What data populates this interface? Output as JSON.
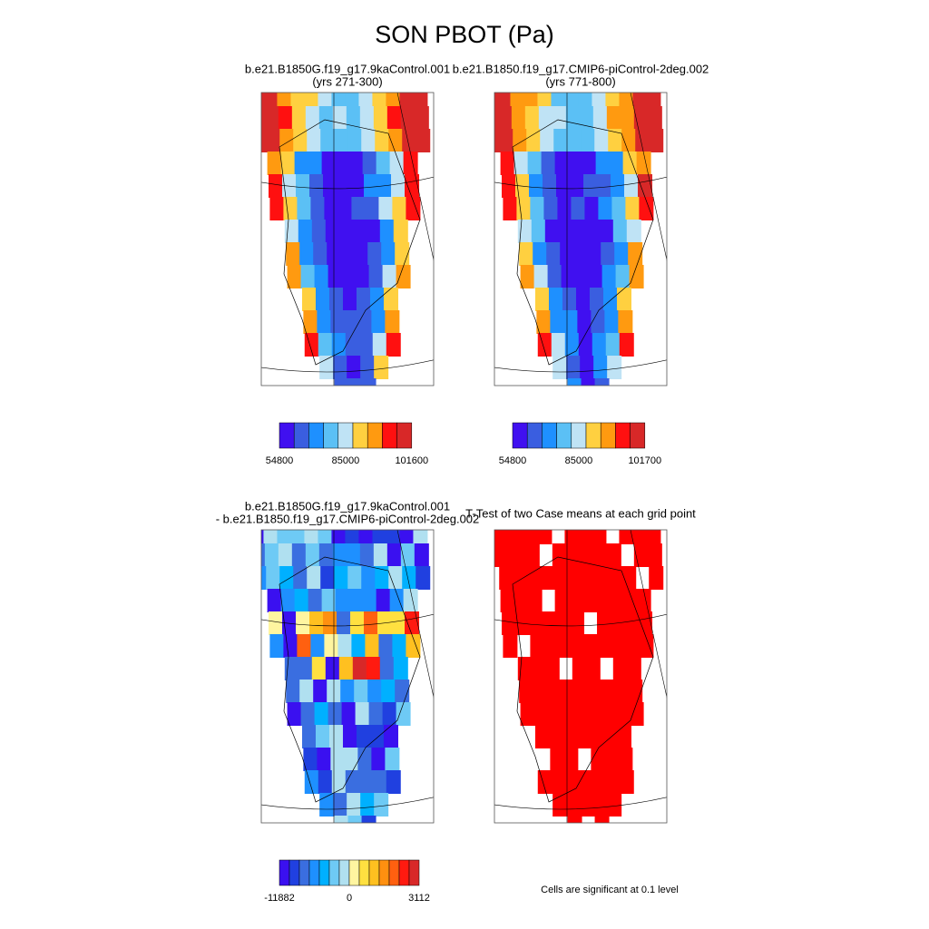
{
  "title": "SON PBOT (Pa)",
  "panels": [
    {
      "title": [
        "b.e21.B1850G.f19_g17.9kaControl.001",
        "(yrs 271-300)"
      ],
      "colorbar": {
        "colors": [
          "#4010f0",
          "#3a5ee0",
          "#1e90ff",
          "#5bc0f5",
          "#bfe3f5",
          "#ffd040",
          "#ff9a10",
          "#ff1010",
          "#d82828"
        ],
        "ticks": [
          54800,
          85000,
          101600
        ]
      }
    },
    {
      "title": [
        "b.e21.B1850.f19_g17.CMIP6-piControl-2deg.002",
        "(yrs 771-800)"
      ],
      "colorbar": {
        "colors": [
          "#4010f0",
          "#3a5ee0",
          "#1e90ff",
          "#5bc0f5",
          "#bfe3f5",
          "#ffd040",
          "#ff9a10",
          "#ff1010",
          "#d82828"
        ],
        "ticks": [
          54800,
          85000,
          101700
        ]
      }
    },
    {
      "title": [
        "b.e21.B1850G.f19_g17.9kaControl.001",
        "- b.e21.B1850.f19_g17.CMIP6-piControl-2deg.002"
      ],
      "colorbar": {
        "colors": [
          "#3a10f0",
          "#2040e0",
          "#3a6ee0",
          "#1e90ff",
          "#00b0ff",
          "#6ecaf5",
          "#b0e0f0",
          "#fff5a0",
          "#ffe040",
          "#ffc020",
          "#ff9010",
          "#ff6010",
          "#ff1a10",
          "#d82828"
        ],
        "ticks": [
          -11882,
          0,
          3112
        ]
      }
    },
    {
      "title": [
        "T-Test of two Case means at each grid point"
      ],
      "fill": "#ff0000",
      "note": "Cells are significant at 0.1 level"
    }
  ]
}
